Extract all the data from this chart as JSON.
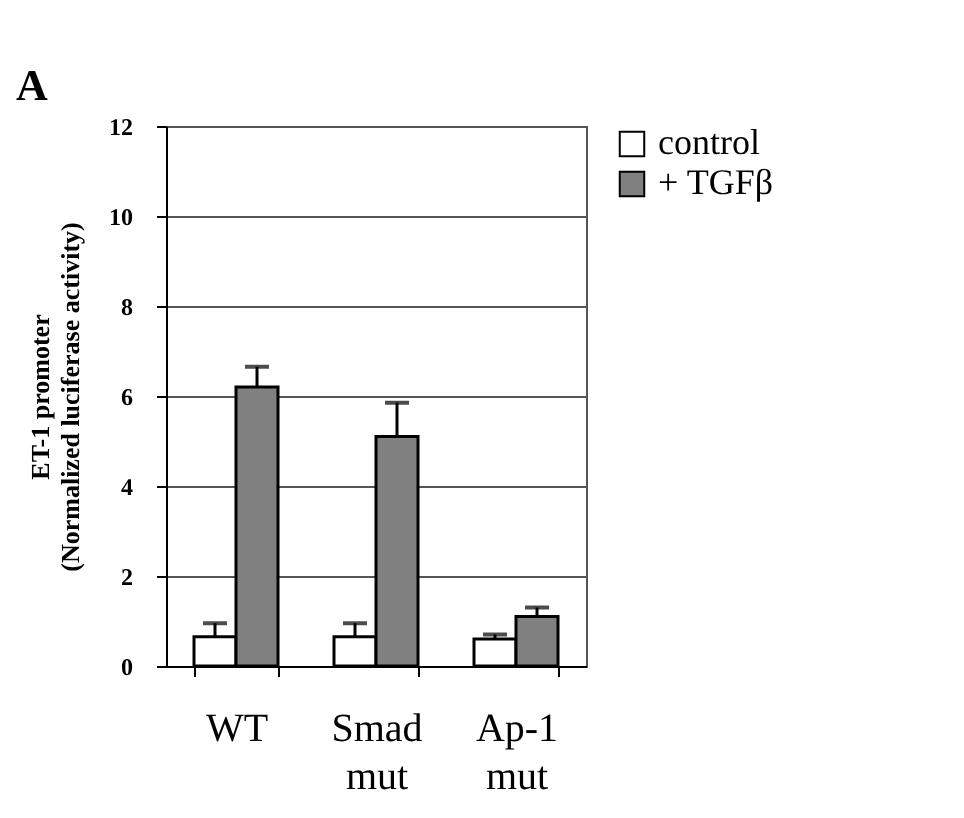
{
  "chart_data": {
    "type": "bar",
    "annotations": [
      "A"
    ],
    "ylabel": "ET-1 promoter\n(Normalized luciferase activity)",
    "categories": [
      "WT",
      "Smad mut",
      "Ap-1 mut"
    ],
    "series": [
      {
        "name": "control",
        "color": "#ffffff",
        "values": [
          0.65,
          0.65,
          0.6
        ],
        "errors": [
          [
            0.65,
            0.95
          ],
          [
            0.65,
            0.95
          ],
          [
            0.6,
            0.7
          ]
        ]
      },
      {
        "name": "+ TGFβ",
        "color": "#808080",
        "values": [
          6.2,
          5.1,
          1.1
        ],
        "errors": [
          [
            6.2,
            6.65
          ],
          [
            5.1,
            5.85
          ],
          [
            1.1,
            1.3
          ]
        ]
      }
    ],
    "ylim": [
      0,
      12
    ],
    "yticks": [
      0,
      2,
      4,
      6,
      8,
      10,
      12
    ],
    "grid": "y",
    "legend": "right"
  }
}
